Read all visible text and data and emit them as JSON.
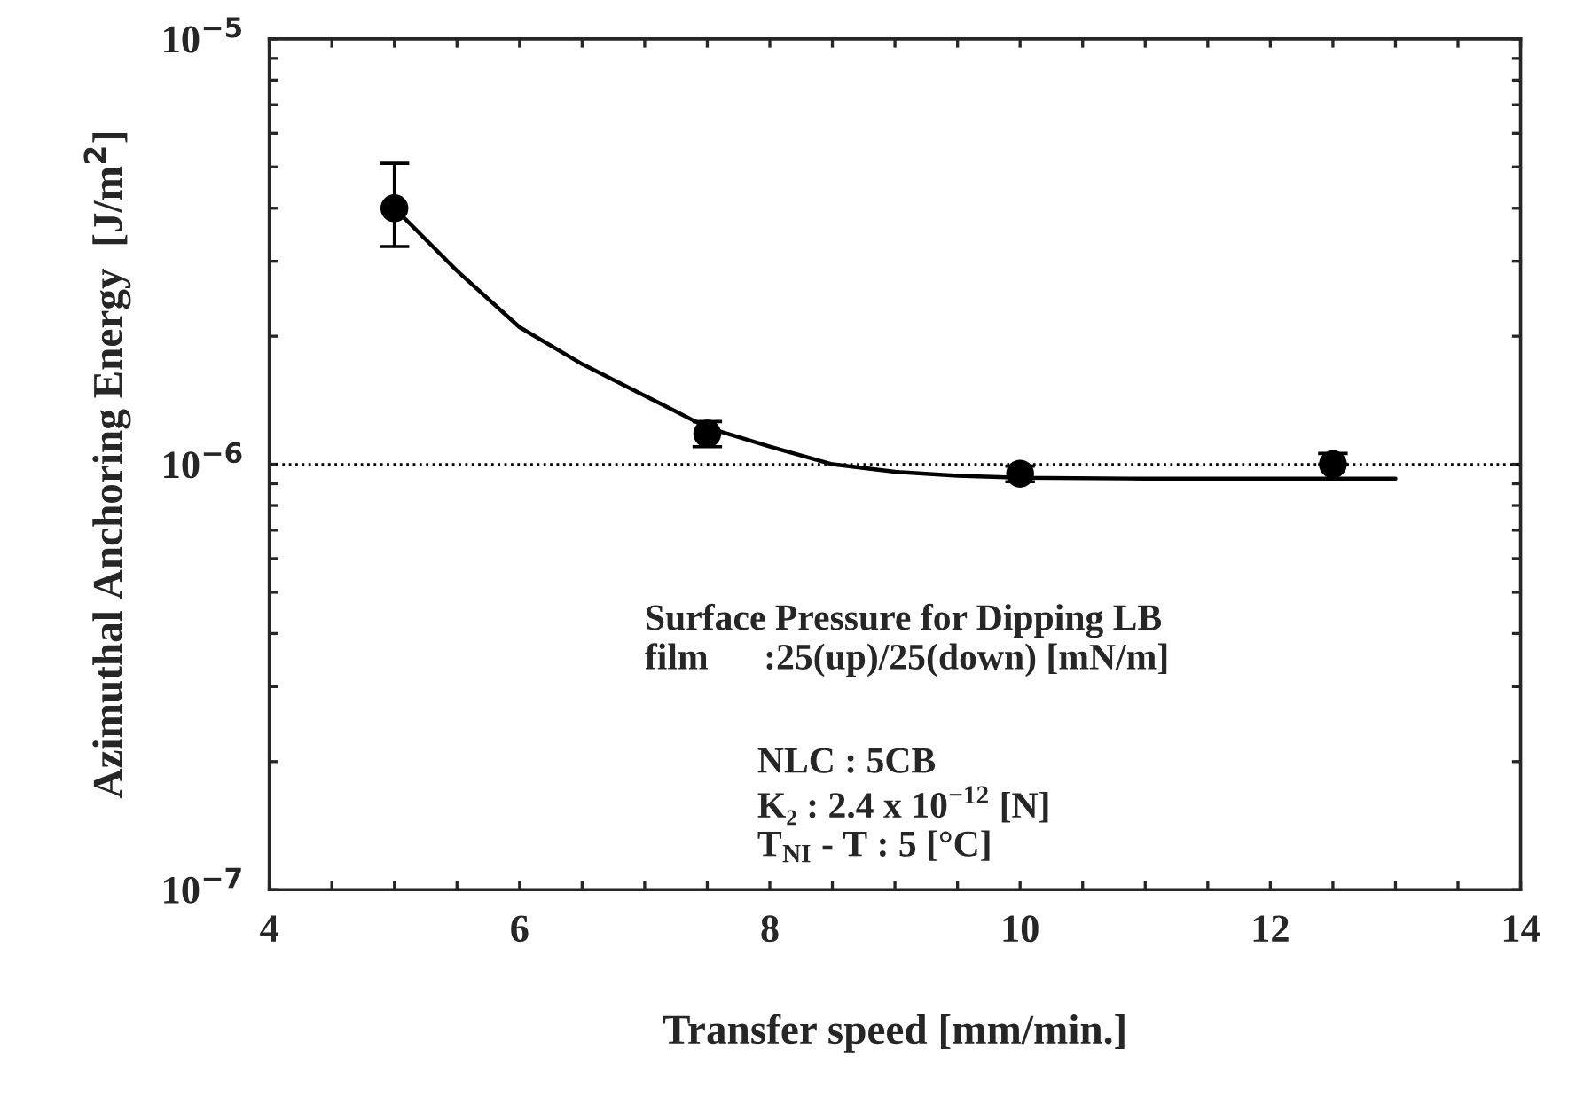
{
  "chart_data": {
    "type": "scatter",
    "xlabel": "Transfer speed [mm/min.]",
    "ylabel": "Azimuthal Anchoring Energy  [J/m$^{2}$]",
    "log": "y",
    "xlim": [
      4,
      14
    ],
    "ylim": [
      1e-07,
      1e-05
    ],
    "xticks": [
      4,
      {
        "value": 4.5,
        "label": null
      },
      {
        "value": 5,
        "label": null
      },
      {
        "value": 5.5,
        "label": null
      },
      6,
      {
        "value": 6.5,
        "label": null
      },
      {
        "value": 7,
        "label": null
      },
      {
        "value": 7.5,
        "label": null
      },
      8,
      {
        "value": 8.5,
        "label": null
      },
      {
        "value": 9,
        "label": null
      },
      {
        "value": 9.5,
        "label": null
      },
      10,
      {
        "value": 10.5,
        "label": null
      },
      {
        "value": 11,
        "label": null
      },
      {
        "value": 11.5,
        "label": null
      },
      12,
      {
        "value": 12.5,
        "label": null
      },
      {
        "value": 13,
        "label": null
      },
      {
        "value": 13.5,
        "label": null
      },
      14
    ],
    "yticks": [
      {
        "value": 1e-07,
        "label": "10$^{−7}$"
      },
      {
        "value": 2e-07,
        "label": null
      },
      {
        "value": 3e-07,
        "label": null
      },
      {
        "value": 4e-07,
        "label": null
      },
      {
        "value": 5e-07,
        "label": null
      },
      {
        "value": 6e-07,
        "label": null
      },
      {
        "value": 7e-07,
        "label": null
      },
      {
        "value": 8e-07,
        "label": null
      },
      {
        "value": 9e-07,
        "label": null
      },
      {
        "value": 1e-06,
        "label": "10$^{−6}$"
      },
      {
        "value": 2e-06,
        "label": null
      },
      {
        "value": 3e-06,
        "label": null
      },
      {
        "value": 4e-06,
        "label": null
      },
      {
        "value": 5e-06,
        "label": null
      },
      {
        "value": 6e-06,
        "label": null
      },
      {
        "value": 7e-06,
        "label": null
      },
      {
        "value": 8e-06,
        "label": null
      },
      {
        "value": 9e-06,
        "label": null
      },
      {
        "value": 1e-05,
        "label": "10$^{−5}$"
      }
    ],
    "grid": false,
    "legend": false,
    "series": [
      {
        "marker": "circle",
        "color": "#000000",
        "x": [
          5,
          7.5,
          10,
          12.5
        ],
        "values": [
          4e-06,
          1.18e-06,
          9.5e-07,
          1e-06
        ],
        "errors": [
          [
            3.25e-06,
            5.1e-06
          ],
          [
            1.1e-06,
            1.26e-06
          ],
          [
            9.1e-07,
            9.9e-07
          ],
          [
            1e-06,
            1.06e-06
          ]
        ]
      },
      {
        "type": "line",
        "color": "#000000",
        "x": [
          5,
          5.5,
          6,
          6.5,
          7,
          7.5,
          8,
          8.5,
          9,
          9.5,
          10,
          11,
          12,
          13
        ],
        "values": [
          4e-06,
          2.85e-06,
          2.1e-06,
          1.72e-06,
          1.45e-06,
          1.22e-06,
          1.1e-06,
          1e-06,
          9.6e-07,
          9.4e-07,
          9.3e-07,
          9.25e-07,
          9.25e-07,
          9.25e-07
        ]
      }
    ],
    "ref_lines": [
      {
        "axis": "y",
        "value": 1e-06,
        "label": null,
        "line_style": "dotted",
        "color": "#000000"
      }
    ],
    "annotations": [
      "Surface Pressure for Dipping LB\nfilm      :25(up)/25(down) [mN/m]",
      "NLC : 5CB\nK₂ : 2.4 x 10$^{−12}$ [N]\nT$_{NI}$ - T : 5 [°C]"
    ]
  }
}
